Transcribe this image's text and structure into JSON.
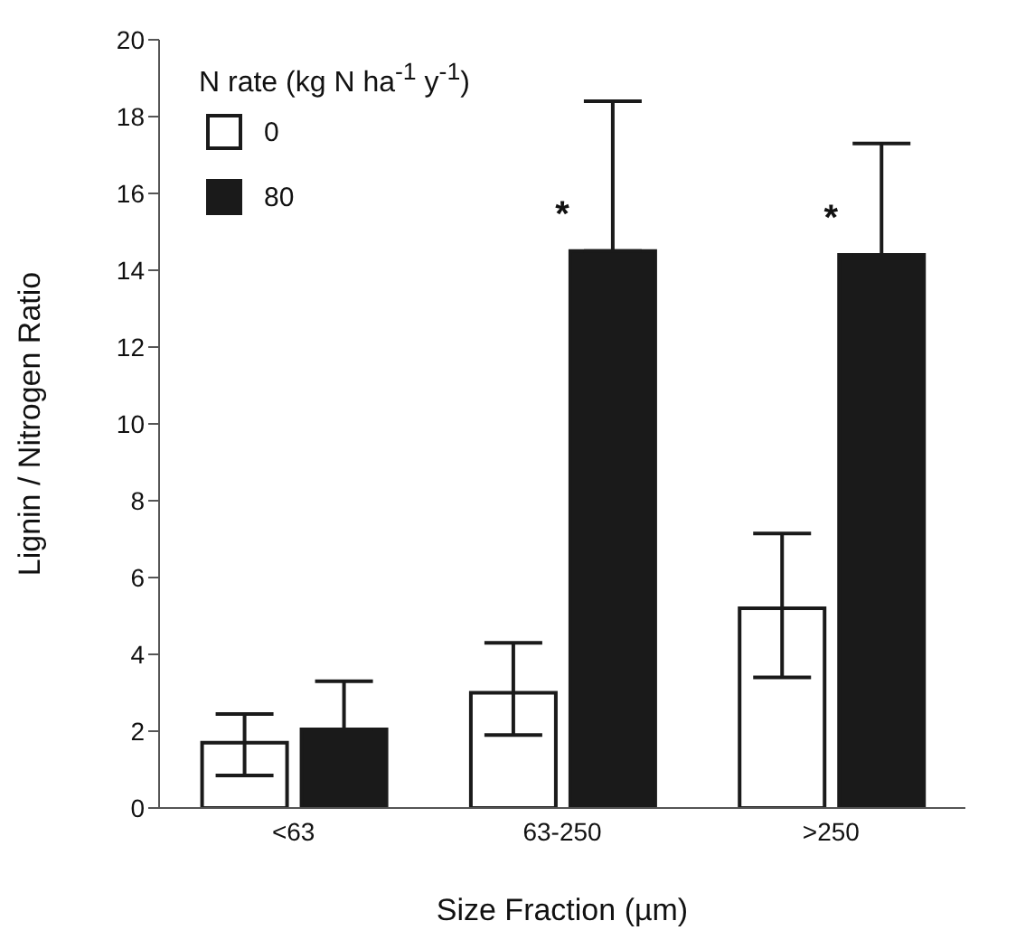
{
  "chart_data": {
    "type": "bar",
    "xlabel": "Size Fraction (µm)",
    "ylabel": "Lignin / Nitrogen Ratio",
    "legend_title": "N rate (kg N ha$^{-1}$ y$^{-1}$)",
    "categories": [
      "<63",
      "63-250",
      ">250"
    ],
    "series": [
      {
        "name": "0",
        "color": "#ffffff",
        "values": [
          1.7,
          3.0,
          5.2
        ],
        "errors": [
          [
            0.85,
            2.45
          ],
          [
            1.9,
            4.3
          ],
          [
            3.4,
            7.15
          ]
        ]
      },
      {
        "name": "80",
        "color": "#1a1a1a",
        "values": [
          2.05,
          14.5,
          14.4
        ],
        "errors": [
          [
            2.05,
            3.3
          ],
          [
            14.5,
            18.4
          ],
          [
            14.4,
            17.3
          ]
        ]
      }
    ],
    "ylim": [
      0,
      20
    ],
    "yticks": [
      0,
      2,
      4,
      6,
      8,
      10,
      12,
      14,
      16,
      18,
      20
    ],
    "legend": "top left",
    "annotations": [
      {
        "text": "*",
        "x": "63-250",
        "y": 14.5
      },
      {
        "text": "*",
        "x": ">250",
        "y": 14.4
      }
    ]
  }
}
